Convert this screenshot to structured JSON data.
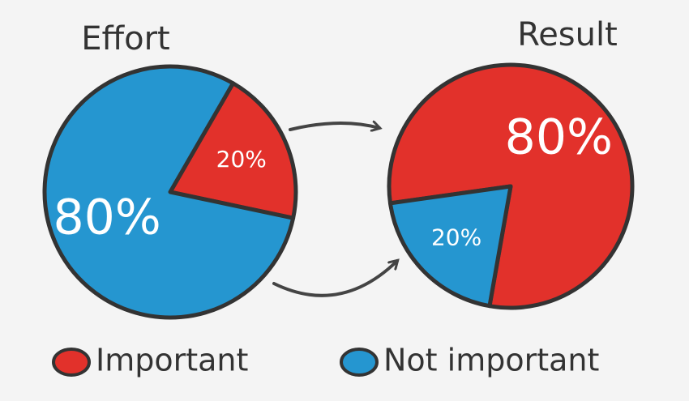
{
  "chart_data": [
    {
      "type": "pie",
      "title": "Effort",
      "categories": [
        "Important",
        "Not important"
      ],
      "values": [
        20,
        80
      ],
      "value_labels": [
        "20%",
        "80%"
      ],
      "colors": [
        "#e2312b",
        "#2596d0"
      ]
    },
    {
      "type": "pie",
      "title": "Result",
      "categories": [
        "Important",
        "Not important"
      ],
      "values": [
        80,
        20
      ],
      "value_labels": [
        "80%",
        "20%"
      ],
      "colors": [
        "#e2312b",
        "#2596d0"
      ]
    }
  ]
}
